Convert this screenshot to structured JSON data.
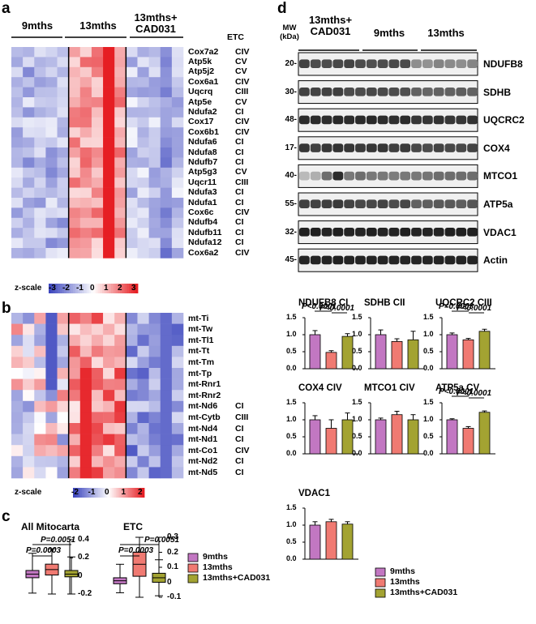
{
  "panels": {
    "a": "a",
    "b": "b",
    "c": "c",
    "d": "d"
  },
  "groups": {
    "g1": "9mths",
    "g2": "13mths",
    "g3": "13mths+\nCAD031",
    "g3a": "13mths+",
    "g3b": "CAD031"
  },
  "heatmap_a": {
    "etc_header": "ETC",
    "genes": [
      "Cox7a2",
      "Atp5k",
      "Atp5j2",
      "Cox6a1",
      "Uqcrq",
      "Atp5e",
      "Ndufa2",
      "Cox17",
      "Cox6b1",
      "Ndufa6",
      "Ndufa8",
      "Ndufb7",
      "Atp5g3",
      "Uqcr11",
      "Ndufa3",
      "Ndufa1",
      "Cox6c",
      "Ndufb4",
      "Ndufb11",
      "Ndufa12",
      "Cox6a2"
    ],
    "etc": [
      "CIV",
      "CV",
      "CV",
      "CIV",
      "CIII",
      "CV",
      "CI",
      "CIV",
      "CIV",
      "CI",
      "CI",
      "CI",
      "CV",
      "CIII",
      "CI",
      "CI",
      "CIV",
      "CI",
      "CI",
      "CI",
      "CIV"
    ],
    "scale_title": "z-scale",
    "scale_ticks": [
      "-3",
      "-2",
      "-1",
      "0",
      "1",
      "2",
      "3"
    ]
  },
  "heatmap_b": {
    "genes": [
      "mt-Ti",
      "mt-Tw",
      "mt-Tl1",
      "mt-Tt",
      "mt-Tm",
      "mt-Tp",
      "mt-Rnr1",
      "mt-Rnr2",
      "mt-Nd6",
      "mt-Cytb",
      "mt-Nd4",
      "mt-Nd1",
      "mt-Co1",
      "mt-Nd2",
      "mt-Nd5"
    ],
    "etc": [
      "",
      "",
      "",
      "",
      "",
      "",
      "",
      "",
      "CI",
      "CIII",
      "CI",
      "CI",
      "CIV",
      "CI",
      "CI"
    ],
    "scale_title": "z-scale",
    "scale_ticks": [
      "-2",
      "-1",
      "0",
      "1",
      "2"
    ]
  },
  "boxplots": {
    "all": {
      "title": "All Mitocarta",
      "p1": "P=0.0003",
      "p2": "P=0.0051",
      "ticks": [
        "0.4",
        "0.2",
        "0",
        "-0.2"
      ]
    },
    "etc": {
      "title": "ETC",
      "p1": "P=0.0003",
      "p2": "P=0.0051",
      "ticks": [
        "0.3",
        "0.2",
        "0.1",
        "0",
        "-0.1"
      ]
    },
    "legend": [
      "9mths",
      "13mths",
      "13mths+CAD031"
    ]
  },
  "western": {
    "mw_header1": "MW",
    "mw_header2": "(kDa)",
    "group_labels": [
      "13mths+",
      "CAD031",
      "9mths",
      "13mths"
    ],
    "bands": [
      {
        "mw": "20-",
        "name": "NDUFB8"
      },
      {
        "mw": "30-",
        "name": "SDHB"
      },
      {
        "mw": "48-",
        "name": "UQCRC2"
      },
      {
        "mw": "17-",
        "name": "COX4"
      },
      {
        "mw": "40-",
        "name": "MTCO1"
      },
      {
        "mw": "55-",
        "name": "ATP5a"
      },
      {
        "mw": "32-",
        "name": "VDAC1"
      },
      {
        "mw": "45-",
        "name": "Actin"
      }
    ]
  },
  "colors": {
    "g9": "#c277c2",
    "g13": "#f07a72",
    "gcad": "#a3a332"
  },
  "chart_data": [
    {
      "type": "bar",
      "title": "NDUFB8 CI",
      "categories": [
        "9mths",
        "13mths",
        "13mths+CAD031"
      ],
      "values": [
        1.0,
        0.48,
        0.95
      ],
      "errors": [
        0.12,
        0.05,
        0.08
      ],
      "ylim": [
        0,
        1.5
      ],
      "yticks": [
        "0.0",
        "0.5",
        "1.0",
        "1.5"
      ],
      "annotations": [
        "P<0.0001",
        "P<0.0001"
      ]
    },
    {
      "type": "bar",
      "title": "SDHB CII",
      "categories": [
        "9mths",
        "13mths",
        "13mths+CAD031"
      ],
      "values": [
        1.0,
        0.8,
        0.85
      ],
      "errors": [
        0.14,
        0.08,
        0.25
      ],
      "ylim": [
        0,
        1.5
      ],
      "yticks": [
        "0.0",
        "0.5",
        "1.0",
        "1.5"
      ],
      "annotations": []
    },
    {
      "type": "bar",
      "title": "UQCRC2 CIII",
      "categories": [
        "9mths",
        "13mths",
        "13mths+CAD031"
      ],
      "values": [
        1.0,
        0.85,
        1.1
      ],
      "errors": [
        0.05,
        0.04,
        0.06
      ],
      "ylim": [
        0,
        1.5
      ],
      "yticks": [
        "0.0",
        "0.5",
        "1.0",
        "1.5"
      ],
      "annotations": [
        "P=0.0003",
        "P<0.0001"
      ]
    },
    {
      "type": "bar",
      "title": "COX4 CIV",
      "categories": [
        "9mths",
        "13mths",
        "13mths+CAD031"
      ],
      "values": [
        1.0,
        0.75,
        1.0
      ],
      "errors": [
        0.12,
        0.25,
        0.2
      ],
      "ylim": [
        0,
        1.5
      ],
      "yticks": [
        "0.0",
        "0.5",
        "1.0",
        "1.5"
      ],
      "annotations": []
    },
    {
      "type": "bar",
      "title": "MTCO1 CIV",
      "categories": [
        "9mths",
        "13mths",
        "13mths+CAD031"
      ],
      "values": [
        1.0,
        1.15,
        1.0
      ],
      "errors": [
        0.05,
        0.1,
        0.15
      ],
      "ylim": [
        0,
        1.5
      ],
      "yticks": [
        "0.0",
        "0.5",
        "1.0",
        "1.5"
      ],
      "annotations": []
    },
    {
      "type": "bar",
      "title": "ATP5a CV",
      "categories": [
        "9mths",
        "13mths",
        "13mths+CAD031"
      ],
      "values": [
        1.0,
        0.75,
        1.22
      ],
      "errors": [
        0.03,
        0.05,
        0.04
      ],
      "ylim": [
        0,
        1.5
      ],
      "yticks": [
        "0.0",
        "0.5",
        "1.0",
        "1.5"
      ],
      "annotations": [
        "P<0.0001",
        "P<0.0001"
      ]
    },
    {
      "type": "bar",
      "title": "VDAC1",
      "categories": [
        "9mths",
        "13mths",
        "13mths+CAD031"
      ],
      "values": [
        1.0,
        1.1,
        1.03
      ],
      "errors": [
        0.1,
        0.07,
        0.07
      ],
      "ylim": [
        0,
        1.5
      ],
      "yticks": [
        "0.0",
        "0.5",
        "1.0",
        "1.5"
      ],
      "annotations": []
    }
  ]
}
